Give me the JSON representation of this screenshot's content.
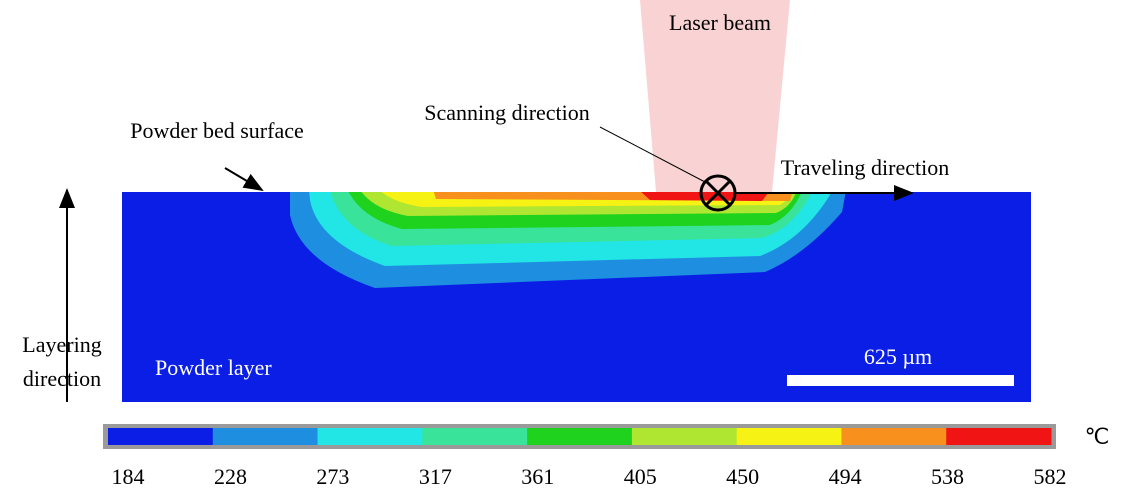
{
  "labels": {
    "laser_beam": "Laser beam",
    "scanning_direction": "Scanning direction",
    "traveling_direction": "Traveling direction",
    "powder_bed_surface": "Powder bed surface",
    "layering": "Layering",
    "direction": "direction",
    "powder_layer": "Powder layer",
    "scale_bar": "625 µm"
  },
  "colorbar": {
    "unit": "℃",
    "colors": [
      "#0a1ee6",
      "#1e8fe0",
      "#22e6e6",
      "#3ae39a",
      "#1ed21e",
      "#aee632",
      "#f6f214",
      "#f8901e",
      "#f01414"
    ],
    "ticks": [
      184,
      228,
      273,
      317,
      361,
      405,
      450,
      494,
      538,
      582
    ]
  }
}
